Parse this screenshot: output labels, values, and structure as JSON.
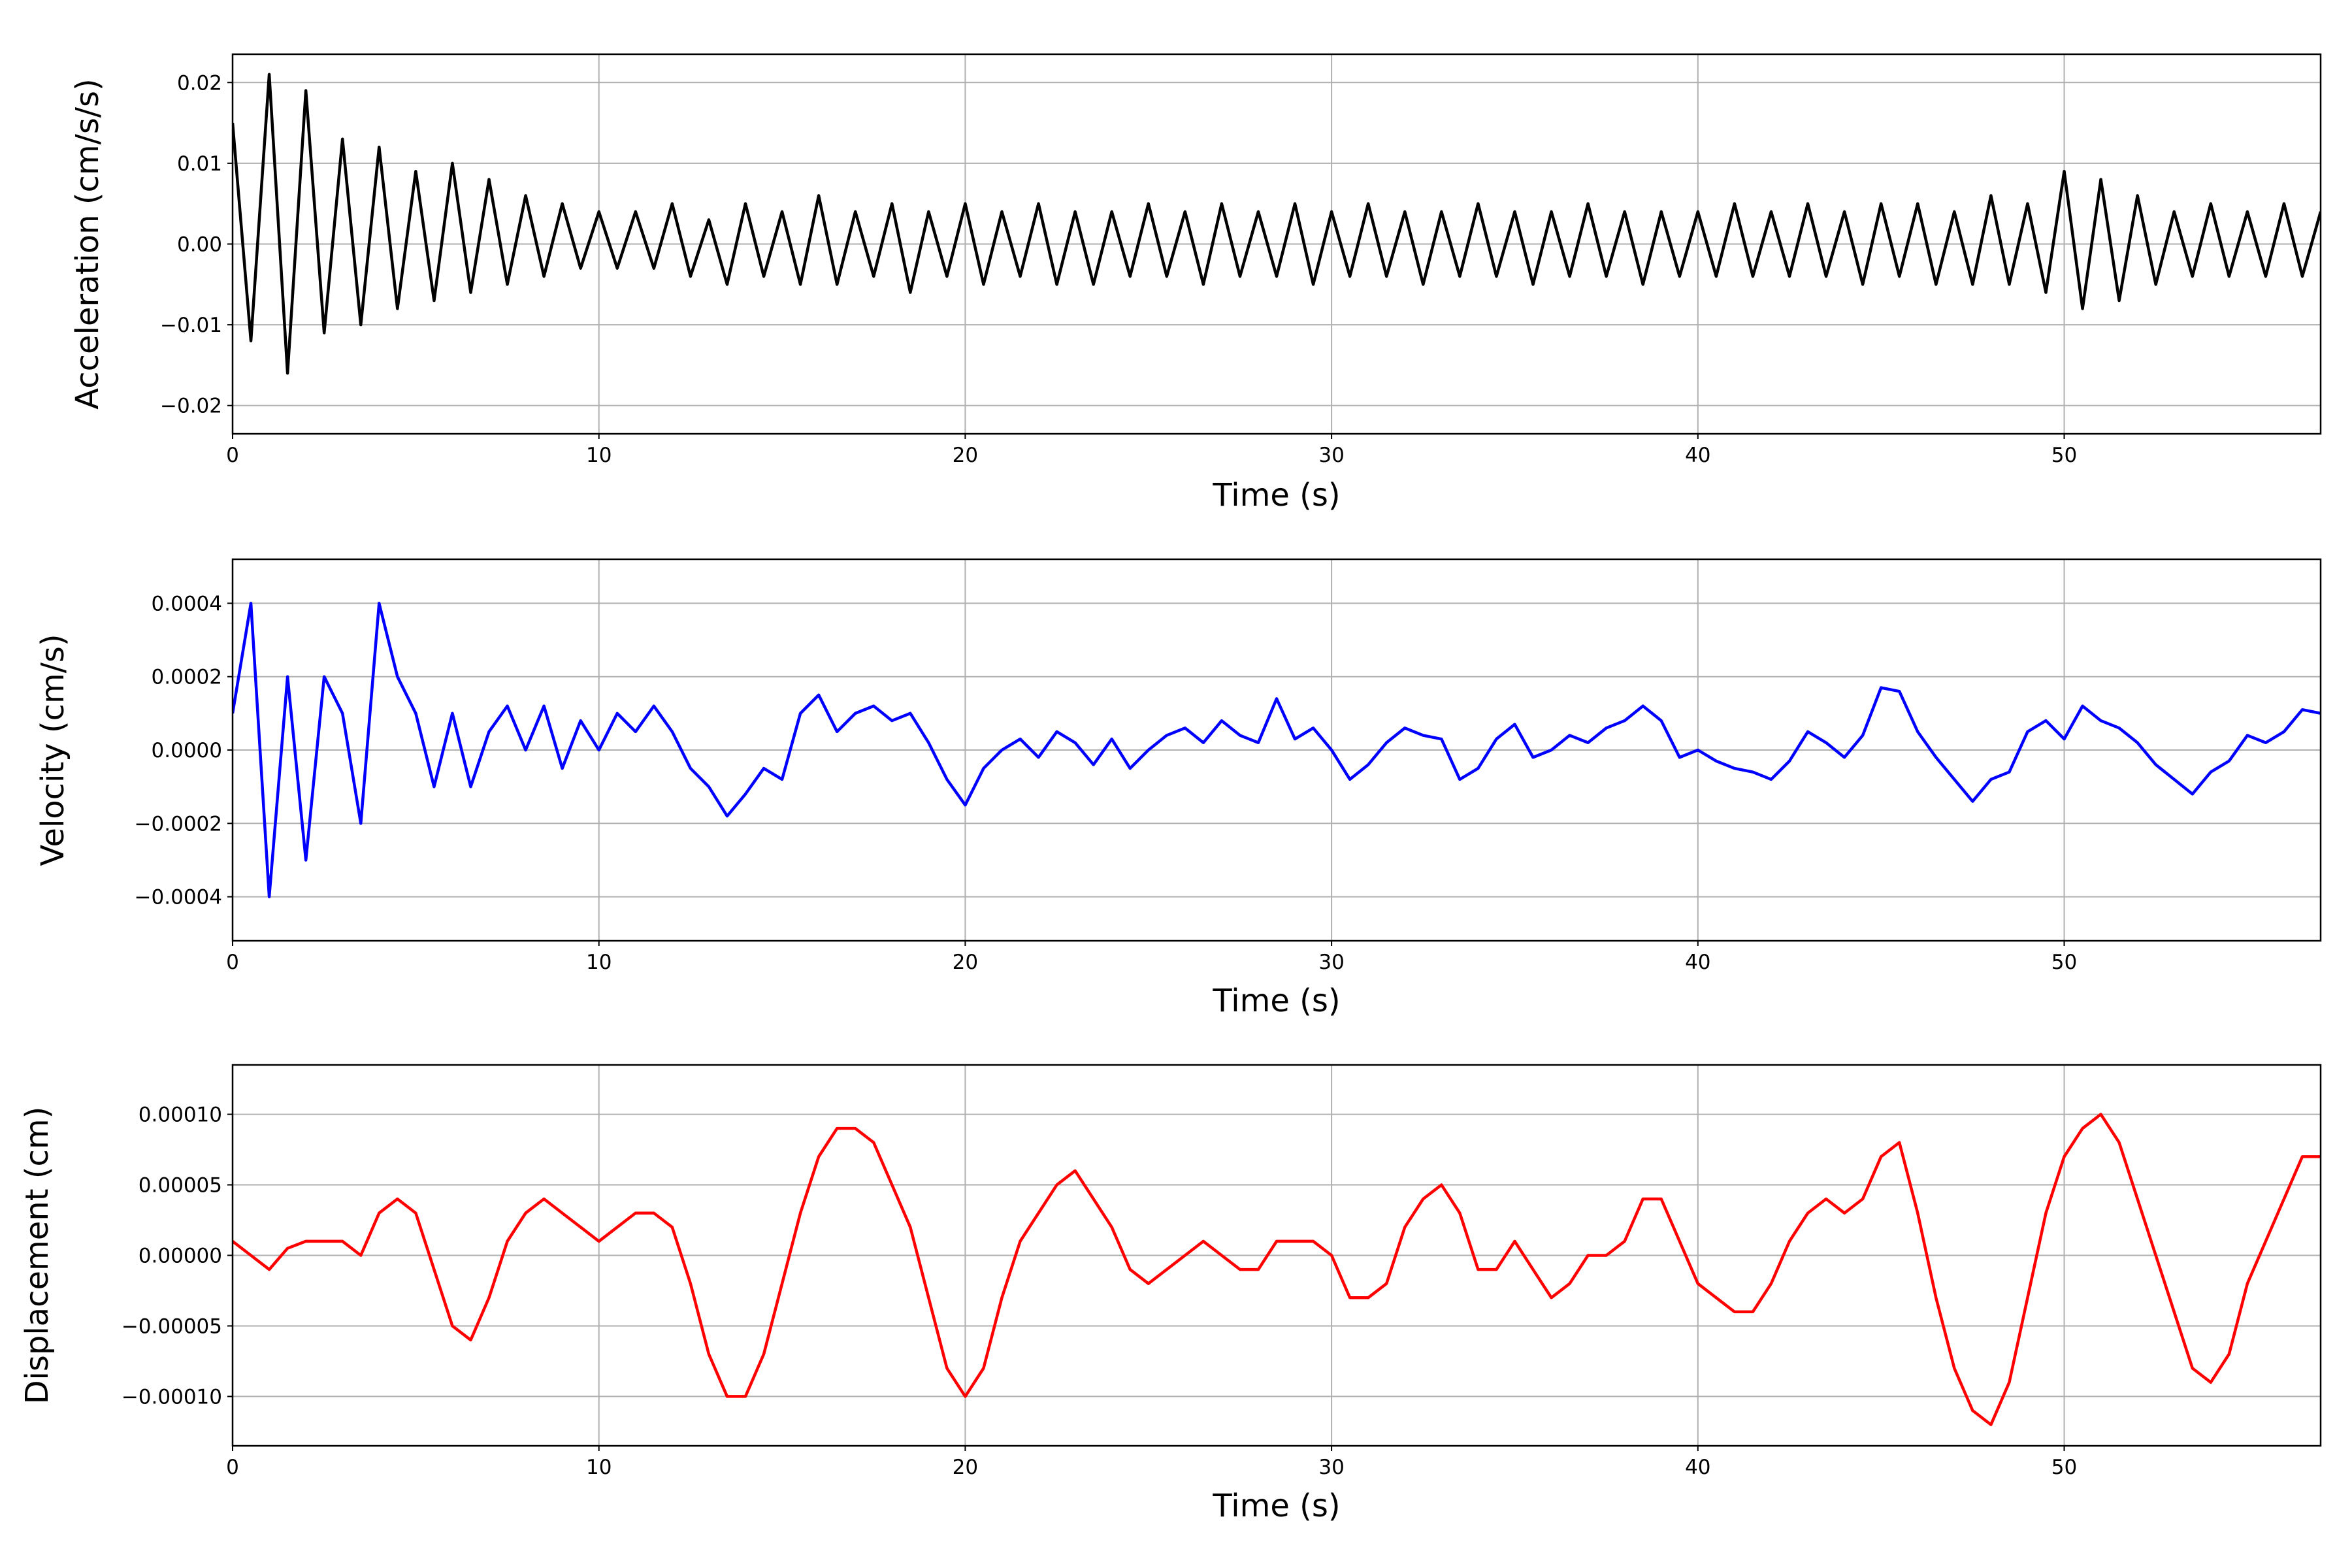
{
  "chart_data": [
    {
      "type": "line",
      "xlabel": "Time (s)",
      "ylabel": "Acceleration (cm/s/s)",
      "color": "#000000",
      "grid": true,
      "xlim": [
        0,
        57
      ],
      "xticks": [
        0,
        10,
        20,
        30,
        40,
        50
      ],
      "ylim": [
        -0.0235,
        0.0235
      ],
      "yticks": [
        {
          "value": -0.02,
          "label": "−0.02"
        },
        {
          "value": -0.01,
          "label": "−0.01"
        },
        {
          "value": 0,
          "label": "0.00"
        },
        {
          "value": 0.01,
          "label": "0.01"
        },
        {
          "value": 0.02,
          "label": "0.02"
        }
      ],
      "x": [
        0,
        0.5,
        1,
        1.5,
        2,
        2.5,
        3,
        3.5,
        4,
        4.5,
        5,
        5.5,
        6,
        6.5,
        7,
        7.5,
        8,
        8.5,
        9,
        9.5,
        10,
        10.5,
        11,
        11.5,
        12,
        12.5,
        13,
        13.5,
        14,
        14.5,
        15,
        15.5,
        16,
        16.5,
        17,
        17.5,
        18,
        18.5,
        19,
        19.5,
        20,
        20.5,
        21,
        21.5,
        22,
        22.5,
        23,
        23.5,
        24,
        24.5,
        25,
        25.5,
        26,
        26.5,
        27,
        27.5,
        28,
        28.5,
        29,
        29.5,
        30,
        30.5,
        31,
        31.5,
        32,
        32.5,
        33,
        33.5,
        34,
        34.5,
        35,
        35.5,
        36,
        36.5,
        37,
        37.5,
        38,
        38.5,
        39,
        39.5,
        40,
        40.5,
        41,
        41.5,
        42,
        42.5,
        43,
        43.5,
        44,
        44.5,
        45,
        45.5,
        46,
        46.5,
        47,
        47.5,
        48,
        48.5,
        49,
        49.5,
        50,
        50.5,
        51,
        51.5,
        52,
        52.5,
        53,
        53.5,
        54,
        54.5,
        55,
        55.5,
        56,
        56.5,
        57
      ],
      "values": [
        0.015,
        -0.012,
        0.021,
        -0.016,
        0.019,
        -0.011,
        0.013,
        -0.01,
        0.012,
        -0.008,
        0.009,
        -0.007,
        0.01,
        -0.006,
        0.008,
        -0.005,
        0.006,
        -0.004,
        0.005,
        -0.003,
        0.004,
        -0.003,
        0.004,
        -0.003,
        0.005,
        -0.004,
        0.003,
        -0.005,
        0.005,
        -0.004,
        0.004,
        -0.005,
        0.006,
        -0.005,
        0.004,
        -0.004,
        0.005,
        -0.006,
        0.004,
        -0.004,
        0.005,
        -0.005,
        0.004,
        -0.004,
        0.005,
        -0.005,
        0.004,
        -0.005,
        0.004,
        -0.004,
        0.005,
        -0.004,
        0.004,
        -0.005,
        0.005,
        -0.004,
        0.004,
        -0.004,
        0.005,
        -0.005,
        0.004,
        -0.004,
        0.005,
        -0.004,
        0.004,
        -0.005,
        0.004,
        -0.004,
        0.005,
        -0.004,
        0.004,
        -0.005,
        0.004,
        -0.004,
        0.005,
        -0.004,
        0.004,
        -0.005,
        0.004,
        -0.004,
        0.004,
        -0.004,
        0.005,
        -0.004,
        0.004,
        -0.004,
        0.005,
        -0.004,
        0.004,
        -0.005,
        0.005,
        -0.004,
        0.005,
        -0.005,
        0.004,
        -0.005,
        0.006,
        -0.005,
        0.005,
        -0.006,
        0.009,
        -0.008,
        0.008,
        -0.007,
        0.006,
        -0.005,
        0.004,
        -0.004,
        0.005,
        -0.004,
        0.004,
        -0.004,
        0.005,
        -0.004,
        0.004
      ]
    },
    {
      "type": "line",
      "xlabel": "Time (s)",
      "ylabel": "Velocity (cm/s)",
      "color": "#0000ff",
      "grid": true,
      "xlim": [
        0,
        57
      ],
      "xticks": [
        0,
        10,
        20,
        30,
        40,
        50
      ],
      "ylim": [
        -0.00052,
        0.00052
      ],
      "yticks": [
        {
          "value": -0.0004,
          "label": "−0.0004"
        },
        {
          "value": -0.0002,
          "label": "−0.0002"
        },
        {
          "value": 0,
          "label": "0.0000"
        },
        {
          "value": 0.0002,
          "label": "0.0002"
        },
        {
          "value": 0.0004,
          "label": "0.0004"
        }
      ],
      "x": [
        0,
        0.5,
        1,
        1.5,
        2,
        2.5,
        3,
        3.5,
        4,
        4.5,
        5,
        5.5,
        6,
        6.5,
        7,
        7.5,
        8,
        8.5,
        9,
        9.5,
        10,
        10.5,
        11,
        11.5,
        12,
        12.5,
        13,
        13.5,
        14,
        14.5,
        15,
        15.5,
        16,
        16.5,
        17,
        17.5,
        18,
        18.5,
        19,
        19.5,
        20,
        20.5,
        21,
        21.5,
        22,
        22.5,
        23,
        23.5,
        24,
        24.5,
        25,
        25.5,
        26,
        26.5,
        27,
        27.5,
        28,
        28.5,
        29,
        29.5,
        30,
        30.5,
        31,
        31.5,
        32,
        32.5,
        33,
        33.5,
        34,
        34.5,
        35,
        35.5,
        36,
        36.5,
        37,
        37.5,
        38,
        38.5,
        39,
        39.5,
        40,
        40.5,
        41,
        41.5,
        42,
        42.5,
        43,
        43.5,
        44,
        44.5,
        45,
        45.5,
        46,
        46.5,
        47,
        47.5,
        48,
        48.5,
        49,
        49.5,
        50,
        50.5,
        51,
        51.5,
        52,
        52.5,
        53,
        53.5,
        54,
        54.5,
        55,
        55.5,
        56,
        56.5,
        57
      ],
      "values": [
        0.0001,
        0.0004,
        -0.0004,
        0.0002,
        -0.0003,
        0.0002,
        0.0001,
        -0.0002,
        0.0004,
        0.0002,
        0.0001,
        -0.0001,
        0.0001,
        -0.0001,
        5e-05,
        0.00012,
        0,
        0.00012,
        -5e-05,
        8e-05,
        0,
        0.0001,
        5e-05,
        0.00012,
        5e-05,
        -5e-05,
        -0.0001,
        -0.00018,
        -0.00012,
        -5e-05,
        -8e-05,
        0.0001,
        0.00015,
        5e-05,
        0.0001,
        0.00012,
        8e-05,
        0.0001,
        2e-05,
        -8e-05,
        -0.00015,
        -5e-05,
        0,
        3e-05,
        -2e-05,
        5e-05,
        2e-05,
        -4e-05,
        3e-05,
        -5e-05,
        0,
        4e-05,
        6e-05,
        2e-05,
        8e-05,
        4e-05,
        2e-05,
        0.00014,
        3e-05,
        6e-05,
        0,
        -8e-05,
        -4e-05,
        2e-05,
        6e-05,
        4e-05,
        3e-05,
        -8e-05,
        -5e-05,
        3e-05,
        7e-05,
        -2e-05,
        0,
        4e-05,
        2e-05,
        6e-05,
        8e-05,
        0.00012,
        8e-05,
        -2e-05,
        0,
        -3e-05,
        -5e-05,
        -6e-05,
        -8e-05,
        -3e-05,
        5e-05,
        2e-05,
        -2e-05,
        4e-05,
        0.00017,
        0.00016,
        5e-05,
        -2e-05,
        -8e-05,
        -0.00014,
        -8e-05,
        -6e-05,
        5e-05,
        8e-05,
        3e-05,
        0.00012,
        8e-05,
        6e-05,
        2e-05,
        -4e-05,
        -8e-05,
        -0.00012,
        -6e-05,
        -3e-05,
        4e-05,
        2e-05,
        5e-05,
        0.00011,
        0.0001
      ]
    },
    {
      "type": "line",
      "xlabel": "Time (s)",
      "ylabel": "Displacement (cm)",
      "color": "#ff0000",
      "grid": true,
      "xlim": [
        0,
        57
      ],
      "xticks": [
        0,
        10,
        20,
        30,
        40,
        50
      ],
      "ylim": [
        -0.000135,
        0.000135
      ],
      "yticks": [
        {
          "value": -0.0001,
          "label": "−0.00010"
        },
        {
          "value": -5e-05,
          "label": "−0.00005"
        },
        {
          "value": 0,
          "label": "0.00000"
        },
        {
          "value": 5e-05,
          "label": "0.00005"
        },
        {
          "value": 0.0001,
          "label": "0.00010"
        }
      ],
      "x": [
        0,
        0.5,
        1,
        1.5,
        2,
        2.5,
        3,
        3.5,
        4,
        4.5,
        5,
        5.5,
        6,
        6.5,
        7,
        7.5,
        8,
        8.5,
        9,
        9.5,
        10,
        10.5,
        11,
        11.5,
        12,
        12.5,
        13,
        13.5,
        14,
        14.5,
        15,
        15.5,
        16,
        16.5,
        17,
        17.5,
        18,
        18.5,
        19,
        19.5,
        20,
        20.5,
        21,
        21.5,
        22,
        22.5,
        23,
        23.5,
        24,
        24.5,
        25,
        25.5,
        26,
        26.5,
        27,
        27.5,
        28,
        28.5,
        29,
        29.5,
        30,
        30.5,
        31,
        31.5,
        32,
        32.5,
        33,
        33.5,
        34,
        34.5,
        35,
        35.5,
        36,
        36.5,
        37,
        37.5,
        38,
        38.5,
        39,
        39.5,
        40,
        40.5,
        41,
        41.5,
        42,
        42.5,
        43,
        43.5,
        44,
        44.5,
        45,
        45.5,
        46,
        46.5,
        47,
        47.5,
        48,
        48.5,
        49,
        49.5,
        50,
        50.5,
        51,
        51.5,
        52,
        52.5,
        53,
        53.5,
        54,
        54.5,
        55,
        55.5,
        56,
        56.5,
        57
      ],
      "values": [
        1e-05,
        0,
        -1e-05,
        5e-06,
        1e-05,
        1e-05,
        1e-05,
        0,
        3e-05,
        4e-05,
        3e-05,
        -1e-05,
        -5e-05,
        -6e-05,
        -3e-05,
        1e-05,
        3e-05,
        4e-05,
        3e-05,
        2e-05,
        1e-05,
        2e-05,
        3e-05,
        3e-05,
        2e-05,
        -2e-05,
        -7e-05,
        -0.0001,
        -0.0001,
        -7e-05,
        -2e-05,
        3e-05,
        7e-05,
        9e-05,
        9e-05,
        8e-05,
        5e-05,
        2e-05,
        -3e-05,
        -8e-05,
        -0.0001,
        -8e-05,
        -3e-05,
        1e-05,
        3e-05,
        5e-05,
        6e-05,
        4e-05,
        2e-05,
        -1e-05,
        -2e-05,
        -1e-05,
        0,
        1e-05,
        0,
        -1e-05,
        -1e-05,
        1e-05,
        1e-05,
        1e-05,
        0,
        -3e-05,
        -3e-05,
        -2e-05,
        2e-05,
        4e-05,
        5e-05,
        3e-05,
        -1e-05,
        -1e-05,
        1e-05,
        -1e-05,
        -3e-05,
        -2e-05,
        0,
        0,
        1e-05,
        4e-05,
        4e-05,
        1e-05,
        -2e-05,
        -3e-05,
        -4e-05,
        -4e-05,
        -2e-05,
        1e-05,
        3e-05,
        4e-05,
        3e-05,
        4e-05,
        7e-05,
        8e-05,
        3e-05,
        -3e-05,
        -8e-05,
        -0.00011,
        -0.00012,
        -9e-05,
        -3e-05,
        3e-05,
        7e-05,
        9e-05,
        0.0001,
        8e-05,
        4e-05,
        0,
        -4e-05,
        -8e-05,
        -9e-05,
        -7e-05,
        -2e-05,
        1e-05,
        4e-05,
        7e-05,
        7e-05
      ]
    }
  ]
}
